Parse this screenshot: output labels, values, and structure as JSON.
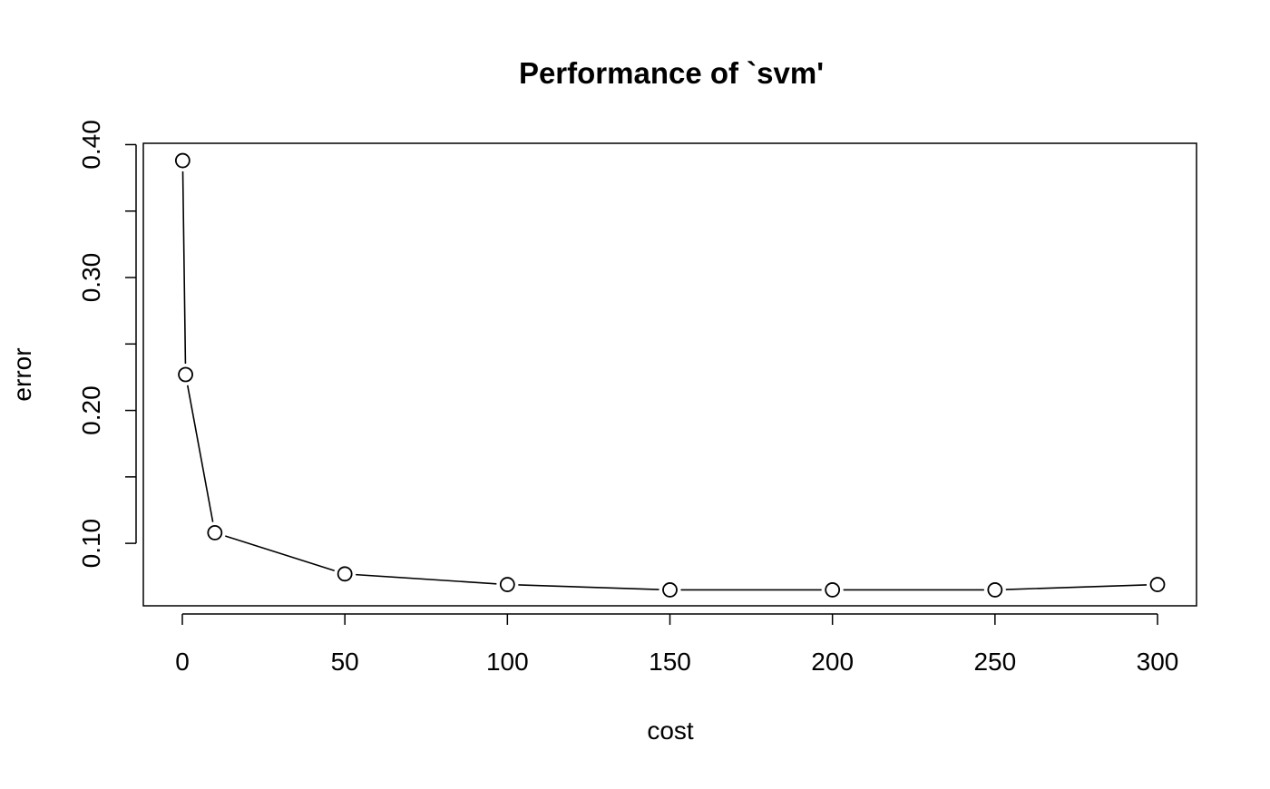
{
  "chart_data": {
    "type": "line",
    "title": "Performance of `svm'",
    "xlabel": "cost",
    "ylabel": "error",
    "x": [
      0.1,
      1,
      10,
      50,
      100,
      150,
      200,
      250,
      300
    ],
    "series": [
      {
        "values": [
          0.388,
          0.227,
          0.108,
          0.077,
          0.069,
          0.065,
          0.065,
          0.065,
          0.069
        ]
      }
    ],
    "xlim": [
      -12,
      312
    ],
    "ylim": [
      0.053,
      0.401
    ],
    "xticks": [
      0,
      50,
      100,
      150,
      200,
      250,
      300
    ],
    "xtick_labels": [
      "0",
      "50",
      "100",
      "150",
      "200",
      "250",
      "300"
    ],
    "yticks": [
      0.1,
      0.15,
      0.2,
      0.25,
      0.3,
      0.35,
      0.4
    ],
    "ytick_labels": [
      "0.10",
      "",
      "0.20",
      "",
      "0.30",
      "",
      "0.40"
    ],
    "markers": "open-circle",
    "grid": false,
    "legend": "none",
    "colors": {
      "line": "#000000",
      "marker_fill": "#ffffff",
      "marker_stroke": "#000000",
      "frame": "#000000",
      "background": "#ffffff"
    }
  }
}
